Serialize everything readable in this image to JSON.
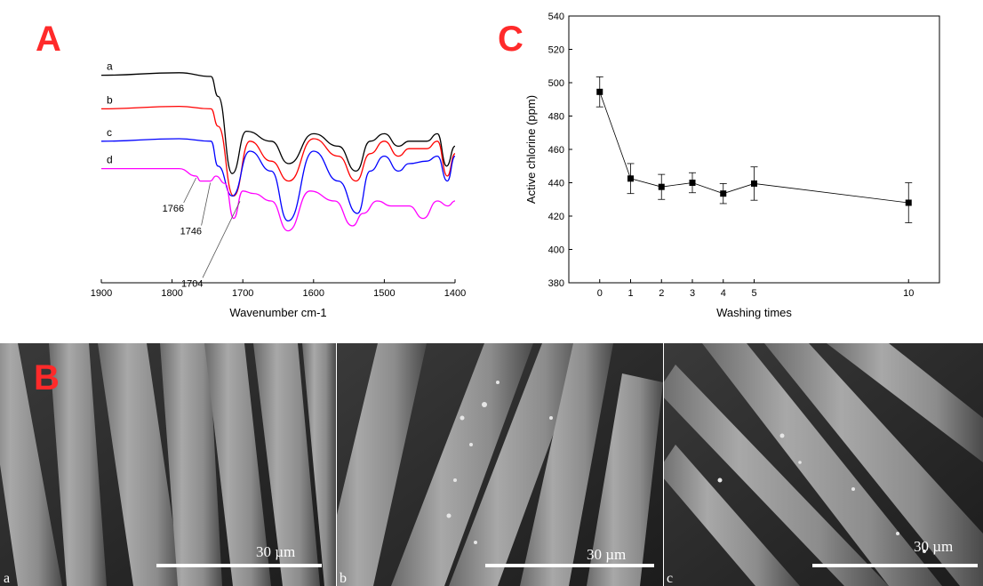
{
  "panel_A": {
    "letter": "A",
    "xlabel": "Wavenumber cm-1",
    "xticks": [
      "1900",
      "1800",
      "1700",
      "1600",
      "1500",
      "1400"
    ],
    "curves": [
      {
        "label": "a",
        "color": "#000000"
      },
      {
        "label": "b",
        "color": "#ff0000"
      },
      {
        "label": "c",
        "color": "#0000ff"
      },
      {
        "label": "d",
        "color": "#ff00ff"
      }
    ],
    "annotations": [
      "1766",
      "1746",
      "1704"
    ]
  },
  "panel_C": {
    "letter": "C",
    "xlabel": "Washing times",
    "ylabel": "Active chlorine (ppm)",
    "xticks": [
      "0",
      "1",
      "2",
      "3",
      "4",
      "5",
      "10"
    ],
    "yticks": [
      "380",
      "400",
      "420",
      "440",
      "460",
      "480",
      "500",
      "520",
      "540"
    ]
  },
  "panel_B": {
    "letter": "B",
    "images": [
      {
        "label": "a",
        "scale_text": "30 µm"
      },
      {
        "label": "b",
        "scale_text": "30 µm"
      },
      {
        "label": "c",
        "scale_text": "30 µm"
      }
    ]
  },
  "chart_data": [
    {
      "type": "line",
      "panel": "A",
      "xlabel": "Wavenumber cm-1",
      "ylabel": "",
      "xlim": [
        1900,
        1400
      ],
      "x_reversed": true,
      "grid": false,
      "series": [
        {
          "name": "a",
          "x": [
            1900,
            1790,
            1745,
            1735,
            1715,
            1695,
            1660,
            1635,
            1600,
            1565,
            1540,
            1520,
            1500,
            1480,
            1465,
            1440,
            1425,
            1412,
            1400
          ],
          "y": [
            30.5,
            31.5,
            30,
            22,
            -9,
            8,
            4,
            -5,
            7,
            2,
            -8,
            4,
            7,
            2,
            4,
            4,
            7,
            -6,
            2
          ]
        },
        {
          "name": "b",
          "x": [
            1900,
            1790,
            1745,
            1735,
            1713,
            1690,
            1660,
            1635,
            1600,
            1565,
            1540,
            1520,
            1500,
            1480,
            1465,
            1440,
            1425,
            1411,
            1400
          ],
          "y": [
            17,
            18,
            17,
            10,
            -18,
            4,
            -4,
            -12,
            5,
            -2,
            -12,
            -1,
            4,
            -2,
            1,
            1,
            4,
            -10,
            -1
          ]
        },
        {
          "name": "c",
          "x": [
            1900,
            1790,
            1745,
            1735,
            1715,
            1690,
            1660,
            1636,
            1600,
            1565,
            1538,
            1520,
            1500,
            1480,
            1465,
            1440,
            1425,
            1411,
            1400
          ],
          "y": [
            4,
            5,
            4,
            -6,
            -18,
            0,
            -8,
            -28,
            0,
            -12,
            -25,
            -8,
            -2,
            -8,
            -5,
            -4,
            -2,
            -12,
            -2
          ]
        },
        {
          "name": "d",
          "x": [
            1900,
            1790,
            1766,
            1760,
            1746,
            1738,
            1725,
            1713,
            1700,
            1685,
            1660,
            1636,
            1605,
            1570,
            1545,
            1530,
            1510,
            1490,
            1465,
            1445,
            1425,
            1410,
            1400
          ],
          "y": [
            -7,
            -7,
            -10,
            -12,
            -12,
            -10,
            -13,
            -27,
            -16,
            -17,
            -20,
            -32,
            -16,
            -20,
            -30,
            -25,
            -20,
            -22,
            -22,
            -27,
            -20,
            -22,
            -20
          ]
        }
      ],
      "annotations": [
        {
          "text": "1766",
          "x": 1766
        },
        {
          "text": "1746",
          "x": 1746
        },
        {
          "text": "1704",
          "x": 1704
        }
      ]
    },
    {
      "type": "scatter",
      "panel": "C",
      "title": "",
      "xlabel": "Washing times",
      "ylabel": "Active chlorine (ppm)",
      "ylim": [
        380,
        540
      ],
      "xlim": [
        -1,
        11
      ],
      "connected": true,
      "x": [
        0,
        1,
        2,
        3,
        4,
        5,
        10
      ],
      "y": [
        494.5,
        442.5,
        437.5,
        440,
        433.5,
        439.5,
        428
      ],
      "error": [
        9,
        9,
        7.5,
        6,
        6,
        10,
        12
      ],
      "grid": false
    }
  ]
}
